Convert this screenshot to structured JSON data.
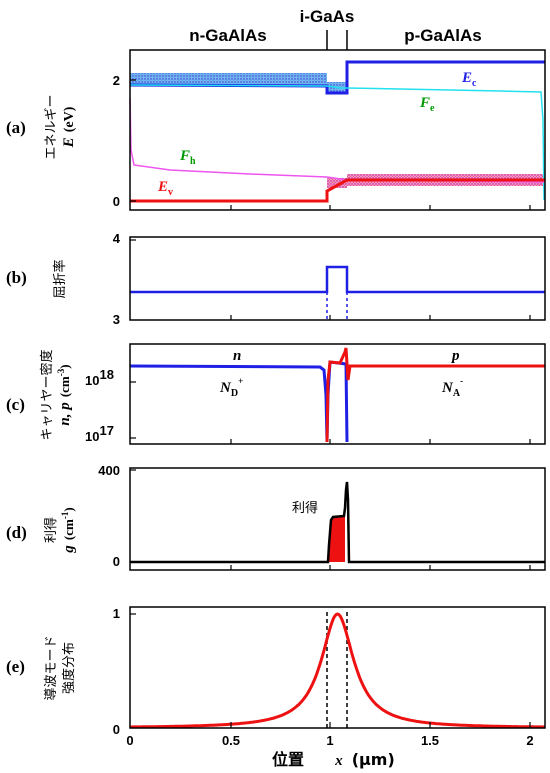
{
  "header": {
    "n_region": "n-GaAlAs",
    "i_region": "i-GaAs",
    "p_region": "p-GaAlAs"
  },
  "x_axis": {
    "label_jp": "位置",
    "label_var": "x",
    "label_unit": "(μm)",
    "ticks": [
      "0",
      "0.5",
      "1",
      "1.5",
      "2"
    ],
    "range": [
      0,
      2.1
    ]
  },
  "panels": {
    "a": {
      "label": "(a)",
      "ylabel_jp": "エネルギー",
      "ylabel_var": "E",
      "ylabel_unit": "(eV)",
      "ticks": [
        "0",
        "2"
      ],
      "annotations": {
        "Ec": {
          "main": "E",
          "sub": "c"
        },
        "Fe": {
          "main": "F",
          "sub": "e"
        },
        "Fh": {
          "main": "F",
          "sub": "h"
        },
        "Ev": {
          "main": "E",
          "sub": "v"
        }
      }
    },
    "b": {
      "label": "(b)",
      "ylabel_jp": "屈折率",
      "ticks": [
        "3",
        "4"
      ]
    },
    "c": {
      "label": "(c)",
      "ylabel_jp": "キャリヤー密度",
      "ylabel_var": "n, p",
      "ylabel_unit": "(cm",
      "ylabel_unit_sup": "-3",
      "ylabel_unit_end": ")",
      "ticks": [
        {
          "base": "10",
          "exp": "17"
        },
        {
          "base": "10",
          "exp": "18"
        }
      ],
      "annotations": {
        "n": "n",
        "p": "p",
        "ND": {
          "main": "N",
          "sub": "D",
          "sup": "+"
        },
        "NA": {
          "main": "N",
          "sub": "A",
          "sup": "-"
        }
      }
    },
    "d": {
      "label": "(d)",
      "ylabel_jp": "利得",
      "ylabel_var": "g",
      "ylabel_unit": "(cm",
      "ylabel_unit_sup": "-1",
      "ylabel_unit_end": ")",
      "ticks": [
        "0",
        "400"
      ],
      "annotation": "利得"
    },
    "e": {
      "label": "(e)",
      "ylabel_jp_1": "導波モード",
      "ylabel_jp_2": "強度分布",
      "ticks": [
        "0",
        "1"
      ]
    }
  },
  "colors": {
    "blue": "#1f1fe6",
    "red": "#ee1111",
    "cyan": "#22e0ee",
    "magenta": "#ee55ee",
    "black": "#000000",
    "green": "#009900"
  },
  "chart_data": [
    {
      "type": "line",
      "title": "",
      "xlabel": "位置 x (μm)",
      "ylabel": "エネルギー E (eV)",
      "xlim": [
        0,
        2.1
      ],
      "ylim": [
        -0.25,
        2.4
      ],
      "series": [
        {
          "name": "Ec",
          "x": [
            0,
            1.0,
            1.0,
            1.07,
            1.1,
            2.1
          ],
          "y": [
            1.94,
            1.93,
            1.78,
            1.78,
            2.28,
            2.28
          ]
        },
        {
          "name": "Fe",
          "x": [
            0,
            1.0,
            1.05,
            1.1,
            2.08,
            2.1
          ],
          "y": [
            1.92,
            1.91,
            1.89,
            1.89,
            1.82,
            0.4
          ]
        },
        {
          "name": "Fh",
          "x": [
            0.0,
            0.02,
            0.3,
            1.0,
            1.1,
            2.1
          ],
          "y": [
            1.6,
            0.57,
            0.49,
            0.4,
            0.36,
            0.33
          ]
        },
        {
          "name": "Ev",
          "x": [
            0,
            1.0,
            1.0,
            1.1,
            2.1
          ],
          "y": [
            0.0,
            0.0,
            0.17,
            0.3,
            0.3
          ]
        }
      ]
    },
    {
      "type": "line",
      "title": "",
      "ylabel": "屈折率",
      "xlim": [
        0,
        2.1
      ],
      "ylim": [
        3,
        4
      ],
      "series": [
        {
          "name": "refractive index",
          "x": [
            0,
            1.0,
            1.0,
            1.1,
            1.1,
            2.1
          ],
          "y": [
            3.33,
            3.33,
            3.63,
            3.63,
            3.33,
            3.33
          ]
        }
      ]
    },
    {
      "type": "line",
      "title": "",
      "ylabel": "キャリヤー密度 n, p (cm-3)",
      "yscale": "log",
      "xlim": [
        0,
        2.1
      ],
      "ylim": [
        1e+17,
        5e+18
      ],
      "series": [
        {
          "name": "n",
          "x": [
            0,
            0.98,
            1.0,
            1.02,
            1.05,
            1.08,
            1.1
          ],
          "y": [
            1.9e+18,
            1.8e+18,
            1.5e+17,
            2.2e+18,
            2.1e+18,
            2e+18,
            1e+17
          ]
        },
        {
          "name": "p",
          "x": [
            1.0,
            1.02,
            1.05,
            1.08,
            1.1,
            1.12,
            2.1
          ],
          "y": [
            1e+17,
            2e+18,
            2.1e+18,
            2.3e+18,
            2.9e+18,
            1.9e+18,
            1.9e+18
          ]
        }
      ]
    },
    {
      "type": "area",
      "title": "",
      "ylabel": "利得 g (cm-1)",
      "xlim": [
        0,
        2.1
      ],
      "ylim": [
        -30,
        400
      ],
      "series": [
        {
          "name": "gain",
          "x": [
            0,
            1.0,
            1.01,
            1.03,
            1.07,
            1.08,
            1.09,
            1.1,
            1.1,
            2.1
          ],
          "y": [
            0,
            0,
            120,
            195,
            200,
            255,
            350,
            300,
            0,
            0
          ]
        }
      ]
    },
    {
      "type": "line",
      "title": "",
      "ylabel": "導波モード強度分布",
      "xlim": [
        0,
        2.1
      ],
      "ylim": [
        0,
        1
      ],
      "series": [
        {
          "name": "mode intensity",
          "center": 1.05,
          "width": 0.1,
          "peak": 1.0
        }
      ]
    }
  ]
}
